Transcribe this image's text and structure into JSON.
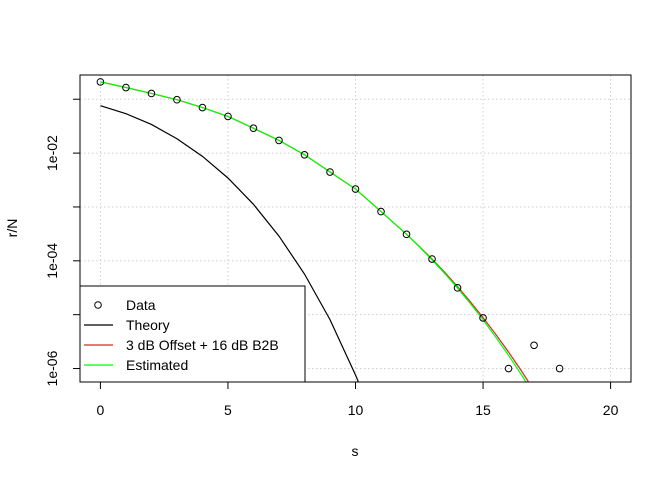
{
  "chart_data": {
    "type": "line",
    "title": "",
    "xlabel": "s",
    "ylabel": "r/N",
    "xlim": [
      -0.8,
      20.8
    ],
    "ylim_log10": [
      -6.25,
      -0.55
    ],
    "y_scale": "log",
    "grid": true,
    "x_ticks": [
      0,
      5,
      10,
      15,
      20
    ],
    "x_tick_labels": [
      "0",
      "5",
      "10",
      "15",
      "20"
    ],
    "y_ticks_log10": [
      -6,
      -5,
      -4,
      -3,
      -2,
      -1
    ],
    "y_labeled_ticks_log10": [
      -6,
      -4,
      -2
    ],
    "y_tick_labels": [
      "1e-06",
      "1e-04",
      "1e-02"
    ],
    "legend": {
      "position": "bottom-left",
      "entries": [
        {
          "label": "Data",
          "marker": "circle",
          "color": "#000000"
        },
        {
          "label": "Theory",
          "marker": "line",
          "color": "#000000"
        },
        {
          "label": "3 dB Offset + 16 dB B2B",
          "marker": "line",
          "color": "#d62728"
        },
        {
          "label": "Estimated",
          "marker": "line",
          "color": "#00ff00"
        }
      ]
    },
    "series": [
      {
        "name": "Data",
        "kind": "points",
        "color": "#000000",
        "x": [
          0,
          1,
          2,
          3,
          4,
          5,
          6,
          7,
          8,
          9,
          10,
          11,
          12,
          13,
          14,
          15,
          16,
          17,
          18
        ],
        "y": [
          0.21,
          0.165,
          0.128,
          0.098,
          0.07,
          0.048,
          0.029,
          0.0172,
          0.0093,
          0.00445,
          0.00215,
          0.00082,
          0.00031,
          0.000108,
          3.15e-05,
          8.7e-06,
          1e-06,
          2.7e-06,
          1e-06
        ]
      },
      {
        "name": "Theory",
        "kind": "line",
        "color": "#000000",
        "x": [
          0,
          1,
          2,
          3,
          4,
          5,
          6,
          7,
          8,
          9,
          10,
          10.3,
          10.6,
          10.75
        ],
        "y": [
          0.076,
          0.054,
          0.034,
          0.0185,
          0.0087,
          0.00345,
          0.00112,
          0.000288,
          5.69e-05,
          8.1e-06,
          7.6e-07,
          3.47e-07,
          1.54e-07,
          1e-07
        ]
      },
      {
        "name": "3 dB Offset + 16 dB B2B",
        "kind": "line",
        "color": "#d62728",
        "x": [
          0,
          1,
          2,
          3,
          4,
          5,
          6,
          7,
          8,
          9,
          10,
          11,
          12,
          12.5,
          13,
          13.5,
          14,
          14.5,
          15,
          15.5,
          16,
          16.5,
          17,
          17.5
        ],
        "y": [
          0.21,
          0.165,
          0.128,
          0.098,
          0.07,
          0.048,
          0.029,
          0.0172,
          0.0093,
          0.00445,
          0.00215,
          0.00082,
          0.00031,
          0.000185,
          0.000108,
          6.1e-05,
          3.32e-05,
          1.74e-05,
          8.8e-06,
          4.3e-06,
          2.02e-06,
          9.1e-07,
          3.9e-07,
          1.6e-07
        ]
      },
      {
        "name": "Estimated",
        "kind": "line",
        "color": "#00ff00",
        "x": [
          0,
          1,
          2,
          3,
          4,
          5,
          6,
          7,
          8,
          9,
          10,
          11,
          12,
          12.5,
          13,
          13.5,
          14,
          14.5,
          15,
          15.5,
          16,
          16.5,
          17,
          17.5
        ],
        "y": [
          0.21,
          0.165,
          0.128,
          0.098,
          0.07,
          0.048,
          0.029,
          0.0172,
          0.0093,
          0.00445,
          0.00215,
          0.00082,
          0.00031,
          0.000182,
          0.000104,
          5.8e-05,
          3.12e-05,
          1.61e-05,
          8e-06,
          3.8e-06,
          1.75e-06,
          7.7e-07,
          3.2e-07,
          1.3e-07
        ]
      }
    ]
  }
}
